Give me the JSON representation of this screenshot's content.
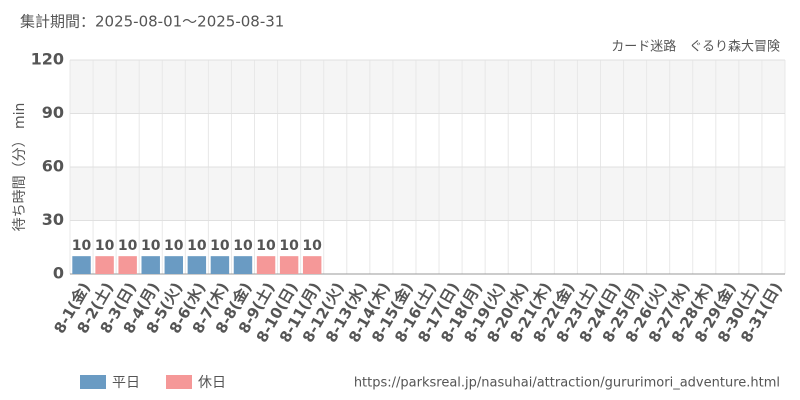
{
  "chart_data": {
    "type": "bar",
    "title": "集計期間：2025-08-01～2025-08-31",
    "subtitle": "カード迷路　ぐるり森大冒険",
    "y_label": "待ち時間（分） min",
    "source": "https://parksreal.jp/nasuhai/attraction/gururimori_adventure.html",
    "categories": [
      "8-1(金)",
      "8-2(土)",
      "8-3(日)",
      "8-4(月)",
      "8-5(火)",
      "8-6(水)",
      "8-7(木)",
      "8-8(金)",
      "8-9(土)",
      "8-10(日)",
      "8-11(月)",
      "8-12(火)",
      "8-13(水)",
      "8-14(木)",
      "8-15(金)",
      "8-16(土)",
      "8-17(日)",
      "8-18(月)",
      "8-19(火)",
      "8-20(水)",
      "8-21(木)",
      "8-22(金)",
      "8-23(土)",
      "8-24(日)",
      "8-25(月)",
      "8-26(火)",
      "8-27(水)",
      "8-28(木)",
      "8-29(金)",
      "8-30(土)",
      "8-31(日)"
    ],
    "category_colors": [
      "#555555",
      "#f08080",
      "#f08080",
      "#555555",
      "#555555",
      "#555555",
      "#555555",
      "#555555",
      "#f08080",
      "#f08080",
      "#f08080",
      "#555555",
      "#555555",
      "#555555",
      "#555555",
      "#f08080",
      "#f08080",
      "#555555",
      "#555555",
      "#555555",
      "#555555",
      "#555555",
      "#f08080",
      "#f08080",
      "#555555",
      "#555555",
      "#555555",
      "#555555",
      "#555555",
      "#f08080",
      "#f08080"
    ],
    "series": [
      {
        "name": "平日",
        "color": "#6a9bc3",
        "values": [
          10,
          null,
          null,
          10,
          10,
          10,
          10,
          10,
          null,
          null,
          null,
          null,
          null,
          null,
          null,
          null,
          null,
          null,
          null,
          null,
          null,
          null,
          null,
          null,
          null,
          null,
          null,
          null,
          null,
          null,
          null
        ]
      },
      {
        "name": "休日",
        "color": "#f59898",
        "values": [
          null,
          10,
          10,
          null,
          null,
          null,
          null,
          null,
          10,
          10,
          10,
          null,
          null,
          null,
          null,
          null,
          null,
          null,
          null,
          null,
          null,
          null,
          null,
          null,
          null,
          null,
          null,
          null,
          null,
          null,
          null
        ]
      }
    ],
    "ylim": [
      0,
      120
    ],
    "yticks": [
      0,
      30,
      60,
      90,
      120
    ],
    "grid": true
  }
}
